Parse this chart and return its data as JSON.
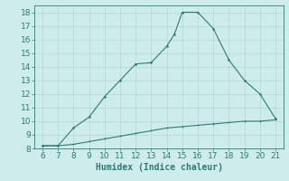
{
  "xlabel": "Humidex (Indice chaleur)",
  "x_main": [
    6,
    7,
    8,
    9,
    10,
    11,
    12,
    13,
    14,
    14.5,
    15,
    16,
    17,
    18,
    19,
    20,
    21
  ],
  "y_main": [
    8.2,
    8.2,
    9.5,
    10.3,
    11.8,
    13.0,
    14.2,
    14.3,
    15.5,
    16.4,
    18.0,
    18.0,
    16.8,
    14.5,
    13.0,
    12.0,
    10.2
  ],
  "x_base": [
    6,
    7,
    8,
    9,
    10,
    11,
    12,
    13,
    14,
    15,
    16,
    17,
    18,
    19,
    20,
    21
  ],
  "y_base": [
    8.2,
    8.2,
    8.3,
    8.5,
    8.7,
    8.9,
    9.1,
    9.3,
    9.5,
    9.6,
    9.7,
    9.8,
    9.9,
    10.0,
    10.0,
    10.1
  ],
  "line_color": "#2e7b72",
  "marker_color": "#2e7b72",
  "bg_color": "#cdecea",
  "grid_color": "#afd8d4",
  "axis_label_color": "#2e7b72",
  "tick_color": "#2e7b72",
  "xlim": [
    5.5,
    21.5
  ],
  "ylim": [
    8,
    18.5
  ],
  "xticks": [
    6,
    7,
    8,
    9,
    10,
    11,
    12,
    13,
    14,
    15,
    16,
    17,
    18,
    19,
    20,
    21
  ],
  "yticks": [
    8,
    9,
    10,
    11,
    12,
    13,
    14,
    15,
    16,
    17,
    18
  ],
  "fontsize": 6.5,
  "xlabel_fontsize": 7.0
}
